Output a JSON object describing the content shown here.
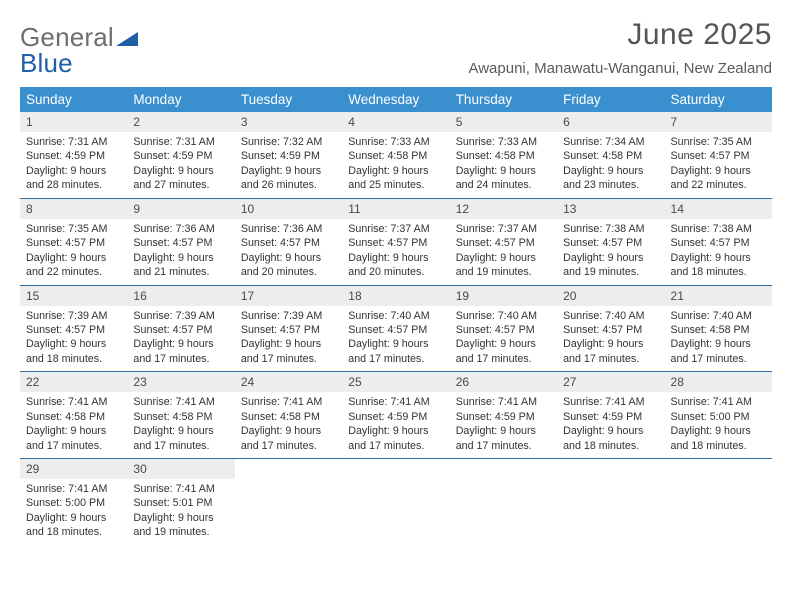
{
  "brand": {
    "general": "General",
    "blue": "Blue"
  },
  "title": {
    "month": "June 2025",
    "location": "Awapuni, Manawatu-Wanganui, New Zealand"
  },
  "colors": {
    "header_bg": "#3a8fce",
    "header_text": "#ffffff",
    "week_border": "#2f6fa3",
    "daynum_bg": "#ededed",
    "body_text": "#333333",
    "title_color": "#555555",
    "logo_gray": "#6e6e6e",
    "logo_blue": "#1e5fa8"
  },
  "dow": [
    "Sunday",
    "Monday",
    "Tuesday",
    "Wednesday",
    "Thursday",
    "Friday",
    "Saturday"
  ],
  "labels": {
    "sunrise": "Sunrise:",
    "sunset": "Sunset:",
    "daylight": "Daylight:"
  },
  "weeks": [
    [
      {
        "n": "1",
        "sr": "7:31 AM",
        "ss": "4:59 PM",
        "dl1": "9 hours",
        "dl2": "and 28 minutes."
      },
      {
        "n": "2",
        "sr": "7:31 AM",
        "ss": "4:59 PM",
        "dl1": "9 hours",
        "dl2": "and 27 minutes."
      },
      {
        "n": "3",
        "sr": "7:32 AM",
        "ss": "4:59 PM",
        "dl1": "9 hours",
        "dl2": "and 26 minutes."
      },
      {
        "n": "4",
        "sr": "7:33 AM",
        "ss": "4:58 PM",
        "dl1": "9 hours",
        "dl2": "and 25 minutes."
      },
      {
        "n": "5",
        "sr": "7:33 AM",
        "ss": "4:58 PM",
        "dl1": "9 hours",
        "dl2": "and 24 minutes."
      },
      {
        "n": "6",
        "sr": "7:34 AM",
        "ss": "4:58 PM",
        "dl1": "9 hours",
        "dl2": "and 23 minutes."
      },
      {
        "n": "7",
        "sr": "7:35 AM",
        "ss": "4:57 PM",
        "dl1": "9 hours",
        "dl2": "and 22 minutes."
      }
    ],
    [
      {
        "n": "8",
        "sr": "7:35 AM",
        "ss": "4:57 PM",
        "dl1": "9 hours",
        "dl2": "and 22 minutes."
      },
      {
        "n": "9",
        "sr": "7:36 AM",
        "ss": "4:57 PM",
        "dl1": "9 hours",
        "dl2": "and 21 minutes."
      },
      {
        "n": "10",
        "sr": "7:36 AM",
        "ss": "4:57 PM",
        "dl1": "9 hours",
        "dl2": "and 20 minutes."
      },
      {
        "n": "11",
        "sr": "7:37 AM",
        "ss": "4:57 PM",
        "dl1": "9 hours",
        "dl2": "and 20 minutes."
      },
      {
        "n": "12",
        "sr": "7:37 AM",
        "ss": "4:57 PM",
        "dl1": "9 hours",
        "dl2": "and 19 minutes."
      },
      {
        "n": "13",
        "sr": "7:38 AM",
        "ss": "4:57 PM",
        "dl1": "9 hours",
        "dl2": "and 19 minutes."
      },
      {
        "n": "14",
        "sr": "7:38 AM",
        "ss": "4:57 PM",
        "dl1": "9 hours",
        "dl2": "and 18 minutes."
      }
    ],
    [
      {
        "n": "15",
        "sr": "7:39 AM",
        "ss": "4:57 PM",
        "dl1": "9 hours",
        "dl2": "and 18 minutes."
      },
      {
        "n": "16",
        "sr": "7:39 AM",
        "ss": "4:57 PM",
        "dl1": "9 hours",
        "dl2": "and 17 minutes."
      },
      {
        "n": "17",
        "sr": "7:39 AM",
        "ss": "4:57 PM",
        "dl1": "9 hours",
        "dl2": "and 17 minutes."
      },
      {
        "n": "18",
        "sr": "7:40 AM",
        "ss": "4:57 PM",
        "dl1": "9 hours",
        "dl2": "and 17 minutes."
      },
      {
        "n": "19",
        "sr": "7:40 AM",
        "ss": "4:57 PM",
        "dl1": "9 hours",
        "dl2": "and 17 minutes."
      },
      {
        "n": "20",
        "sr": "7:40 AM",
        "ss": "4:57 PM",
        "dl1": "9 hours",
        "dl2": "and 17 minutes."
      },
      {
        "n": "21",
        "sr": "7:40 AM",
        "ss": "4:58 PM",
        "dl1": "9 hours",
        "dl2": "and 17 minutes."
      }
    ],
    [
      {
        "n": "22",
        "sr": "7:41 AM",
        "ss": "4:58 PM",
        "dl1": "9 hours",
        "dl2": "and 17 minutes."
      },
      {
        "n": "23",
        "sr": "7:41 AM",
        "ss": "4:58 PM",
        "dl1": "9 hours",
        "dl2": "and 17 minutes."
      },
      {
        "n": "24",
        "sr": "7:41 AM",
        "ss": "4:58 PM",
        "dl1": "9 hours",
        "dl2": "and 17 minutes."
      },
      {
        "n": "25",
        "sr": "7:41 AM",
        "ss": "4:59 PM",
        "dl1": "9 hours",
        "dl2": "and 17 minutes."
      },
      {
        "n": "26",
        "sr": "7:41 AM",
        "ss": "4:59 PM",
        "dl1": "9 hours",
        "dl2": "and 17 minutes."
      },
      {
        "n": "27",
        "sr": "7:41 AM",
        "ss": "4:59 PM",
        "dl1": "9 hours",
        "dl2": "and 18 minutes."
      },
      {
        "n": "28",
        "sr": "7:41 AM",
        "ss": "5:00 PM",
        "dl1": "9 hours",
        "dl2": "and 18 minutes."
      }
    ],
    [
      {
        "n": "29",
        "sr": "7:41 AM",
        "ss": "5:00 PM",
        "dl1": "9 hours",
        "dl2": "and 18 minutes."
      },
      {
        "n": "30",
        "sr": "7:41 AM",
        "ss": "5:01 PM",
        "dl1": "9 hours",
        "dl2": "and 19 minutes."
      },
      {
        "empty": true
      },
      {
        "empty": true
      },
      {
        "empty": true
      },
      {
        "empty": true
      },
      {
        "empty": true
      }
    ]
  ]
}
